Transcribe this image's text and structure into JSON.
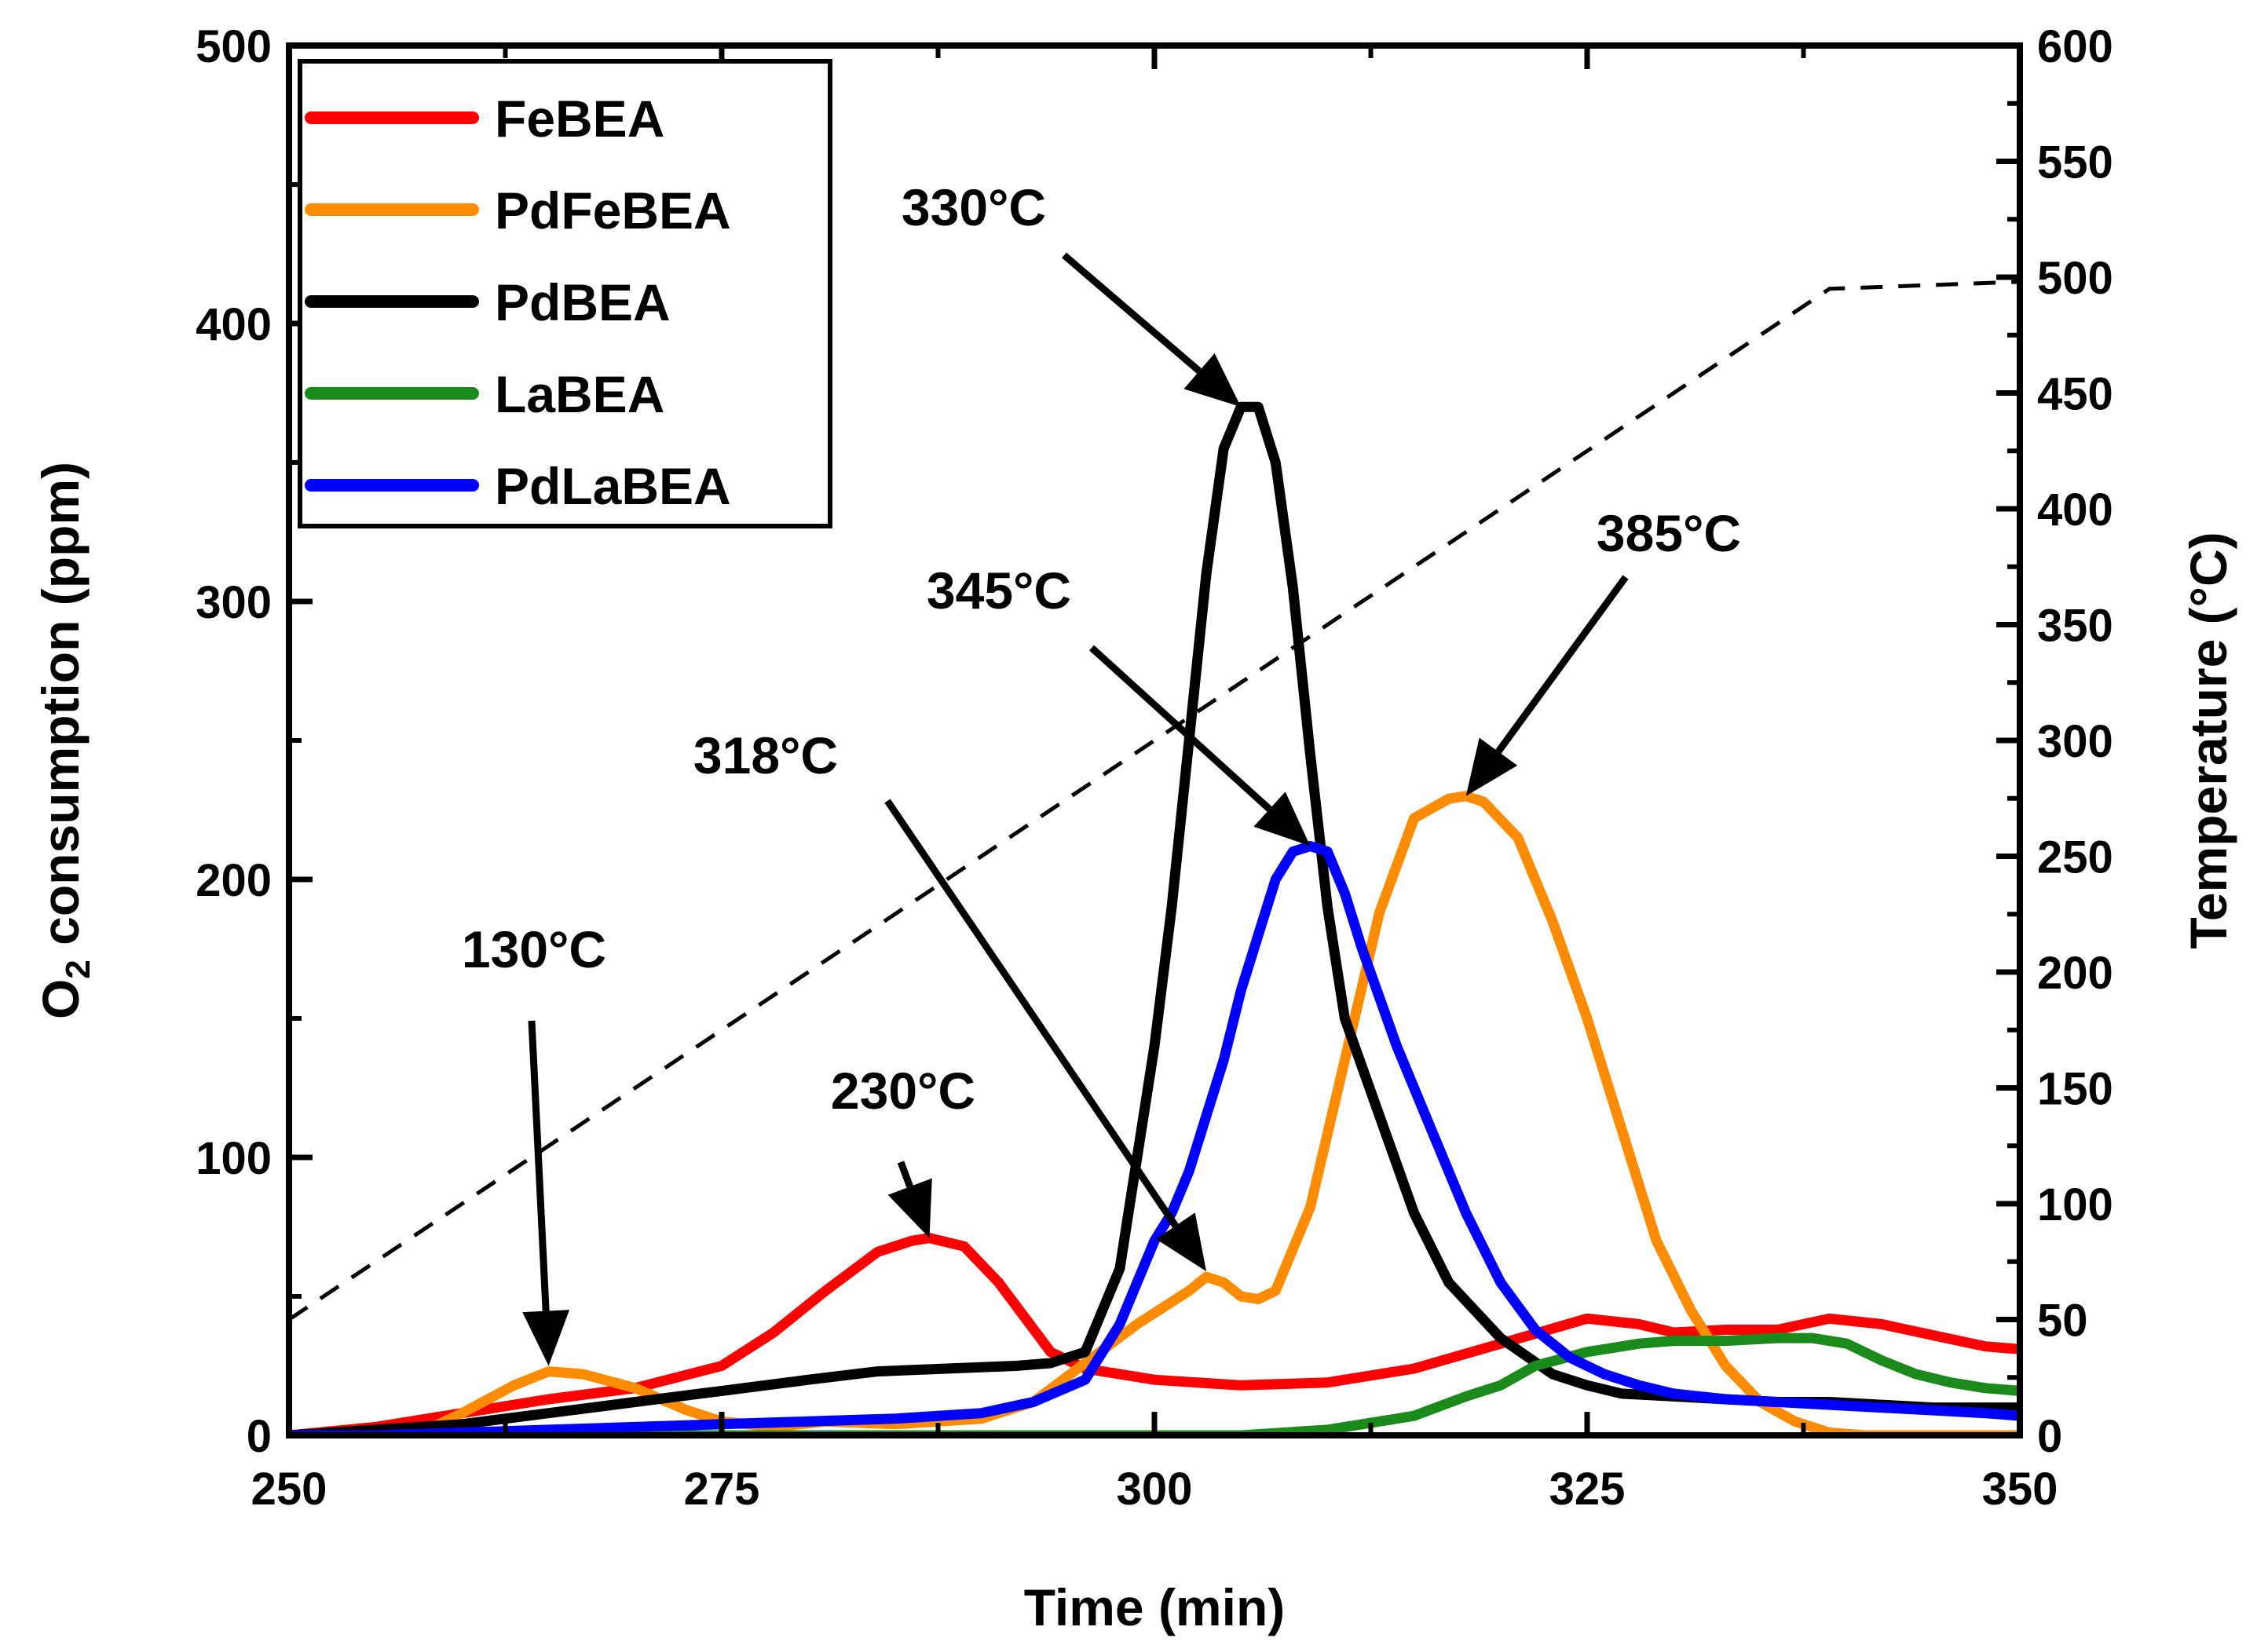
{
  "chart_data": {
    "type": "line",
    "xlabel": "Time (min)",
    "ylabel": {
      "prefix": "O",
      "subscript": "2",
      "suffix": " consumption (ppm)"
    },
    "y2label": "Temperature (°C)",
    "xlim": [
      250,
      350
    ],
    "ylim": [
      0,
      500
    ],
    "y2lim": [
      0,
      600
    ],
    "xticks": [
      "250",
      "275",
      "300",
      "325",
      "350"
    ],
    "yticks": [
      "0",
      "100",
      "200",
      "300",
      "400",
      "500"
    ],
    "y2ticks": [
      "0",
      "50",
      "100",
      "150",
      "200",
      "250",
      "300",
      "350",
      "400",
      "450",
      "500",
      "550",
      "600"
    ],
    "legend_position": "top-left",
    "series": [
      {
        "name": "FeBEA",
        "color": "#ff0000",
        "x": [
          250,
          255,
          260,
          265,
          270,
          275,
          278,
          281,
          284,
          286,
          287,
          289,
          291,
          294,
          296,
          298,
          300,
          305,
          310,
          315,
          320,
          325,
          328,
          330,
          333,
          336,
          339,
          342,
          345,
          348,
          350
        ],
        "y": [
          0,
          3,
          8,
          13,
          17,
          25,
          37,
          52,
          66,
          70,
          71,
          68,
          55,
          30,
          24,
          22,
          20,
          18,
          19,
          24,
          33,
          42,
          40,
          37,
          38,
          38,
          42,
          40,
          36,
          32,
          31
        ]
      },
      {
        "name": "PdFeBEA",
        "color": "#ff8c00",
        "x": [
          250,
          255,
          258,
          260,
          263,
          265,
          267,
          270,
          273,
          275,
          278,
          281,
          285,
          290,
          293,
          296,
          299,
          302,
          303,
          304,
          305,
          306,
          307,
          309,
          311,
          313,
          315,
          317,
          318,
          319,
          321,
          323,
          325,
          327,
          329,
          331,
          333,
          335,
          337,
          339,
          341,
          344,
          350
        ],
        "y": [
          0,
          0,
          2,
          8,
          18,
          23,
          22,
          17,
          9,
          5,
          3,
          5,
          4,
          6,
          12,
          26,
          40,
          52,
          57,
          55,
          50,
          49,
          52,
          82,
          135,
          188,
          222,
          229,
          230,
          228,
          215,
          185,
          150,
          110,
          70,
          45,
          25,
          12,
          5,
          1,
          0,
          0,
          0
        ]
      },
      {
        "name": "PdBEA",
        "color": "#000000",
        "x": [
          250,
          255,
          260,
          265,
          270,
          275,
          280,
          284,
          288,
          292,
          294,
          296,
          298,
          300,
          301,
          302,
          303,
          304,
          305,
          306,
          307,
          308,
          309,
          310,
          311,
          313,
          315,
          317,
          320,
          323,
          325,
          327,
          330,
          333,
          336,
          339,
          342,
          345,
          350
        ],
        "y": [
          0,
          2,
          4,
          8,
          12,
          16,
          20,
          23,
          24,
          25,
          26,
          30,
          60,
          140,
          190,
          250,
          310,
          355,
          370,
          370,
          350,
          305,
          245,
          190,
          150,
          115,
          80,
          55,
          35,
          22,
          18,
          15,
          14,
          13,
          12,
          12,
          11,
          10,
          10
        ]
      },
      {
        "name": "LaBEA",
        "color": "#1a8a1a",
        "x": [
          250,
          255,
          260,
          265,
          270,
          275,
          280,
          285,
          290,
          295,
          300,
          305,
          310,
          315,
          318,
          320,
          322,
          325,
          328,
          330,
          333,
          336,
          338,
          340,
          342,
          344,
          346,
          348,
          350
        ],
        "y": [
          0,
          0,
          0,
          0,
          0,
          0,
          0,
          0,
          0,
          0,
          0,
          0,
          2,
          7,
          14,
          18,
          25,
          30,
          33,
          34,
          34,
          35,
          35,
          33,
          27,
          22,
          19,
          17,
          16
        ]
      },
      {
        "name": "PdLaBEA",
        "color": "#0000ff",
        "x": [
          250,
          255,
          260,
          265,
          270,
          275,
          280,
          285,
          290,
          293,
          296,
          298,
          300,
          301,
          302,
          303,
          304,
          305,
          306,
          307,
          308,
          309,
          310,
          311,
          312,
          314,
          316,
          318,
          320,
          322,
          324,
          326,
          328,
          330,
          333,
          336,
          339,
          342,
          345,
          348,
          350
        ],
        "y": [
          0,
          0,
          1,
          2,
          3,
          4,
          5,
          6,
          8,
          12,
          20,
          40,
          70,
          80,
          95,
          115,
          135,
          160,
          180,
          200,
          210,
          212,
          210,
          195,
          175,
          140,
          110,
          80,
          55,
          38,
          28,
          22,
          18,
          15,
          13,
          12,
          11,
          10,
          9,
          8,
          7
        ]
      },
      {
        "name": "Temperature",
        "axis": "y2",
        "dash": true,
        "color": "#000000",
        "x": [
          250,
          339,
          350
        ],
        "y": [
          50,
          495,
          498
        ]
      }
    ],
    "annotations": [
      {
        "text": "130°C",
        "target": [
          265,
          25
        ]
      },
      {
        "text": "230°C",
        "target": [
          287,
          71
        ]
      },
      {
        "text": "318°C",
        "target": [
          303,
          59
        ]
      },
      {
        "text": "330°C",
        "target": [
          305,
          370
        ]
      },
      {
        "text": "345°C",
        "target": [
          309,
          212
        ]
      },
      {
        "text": "385°C",
        "target": [
          318,
          230
        ]
      }
    ]
  }
}
